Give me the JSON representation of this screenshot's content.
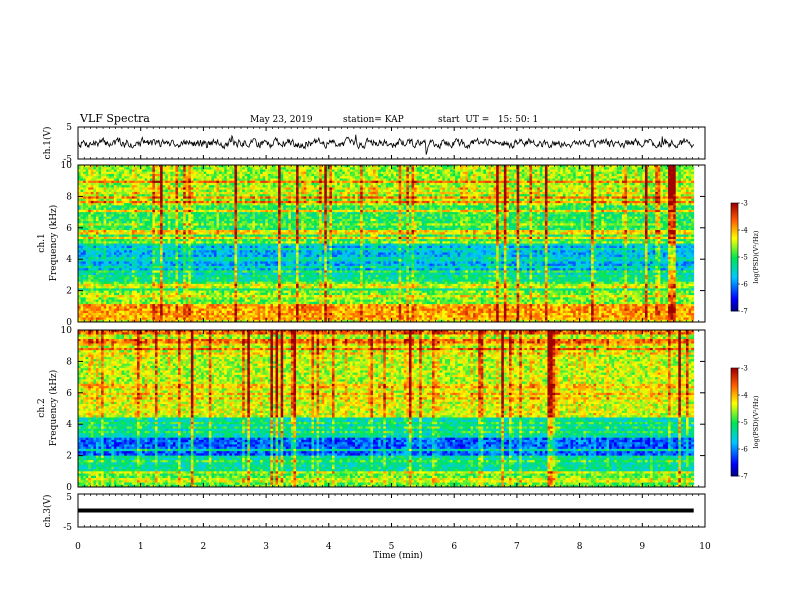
{
  "header": {
    "title": "VLF Spectra",
    "date": "May 23, 2019",
    "station": "station= KAP",
    "start_time": "start  UT =   15: 50: 1"
  },
  "chart_data": [
    {
      "type": "line",
      "name": "ch1-voltage",
      "ylabel": "ch.1(V)",
      "ylim": [
        -5,
        5
      ],
      "yticks": [
        "5",
        "-5"
      ],
      "x_range": [
        0,
        9.82
      ],
      "noise": {
        "mean": 0.0,
        "amplitude": 1.4,
        "seed": 7
      }
    },
    {
      "type": "heatmap",
      "name": "ch1-spectrogram",
      "ylabel_channel": "ch.1",
      "ylabel": "Frequency (kHz)",
      "ylim": [
        0,
        10
      ],
      "yticks": [
        "0",
        "2",
        "4",
        "6",
        "8",
        "10"
      ],
      "x_range": [
        0,
        9.82
      ],
      "colorbar": {
        "label": "log(PSD)(V²/Hz)",
        "range": [
          -7,
          -3
        ],
        "ticks": [
          "-3",
          "-4",
          "-5",
          "-6",
          "-7"
        ]
      },
      "bands": [
        {
          "f0": 0.0,
          "f1": 0.6,
          "level": -4.3
        },
        {
          "f0": 0.6,
          "f1": 1.2,
          "level": -3.9
        },
        {
          "f0": 1.2,
          "f1": 2.0,
          "level": -4.7
        },
        {
          "f0": 2.0,
          "f1": 3.0,
          "level": -5.2
        },
        {
          "f0": 3.0,
          "f1": 5.0,
          "level": -5.8
        },
        {
          "f0": 5.0,
          "f1": 7.5,
          "level": -5.0
        },
        {
          "f0": 7.5,
          "f1": 10.0,
          "level": -4.6
        }
      ],
      "seed": 11
    },
    {
      "type": "heatmap",
      "name": "ch2-spectrogram",
      "ylabel_channel": "ch.2",
      "ylabel": "Frequency (kHz)",
      "ylim": [
        0,
        10
      ],
      "yticks": [
        "0",
        "2",
        "4",
        "6",
        "8",
        "10"
      ],
      "x_range": [
        0,
        9.82
      ],
      "colorbar": {
        "label": "log(PSD)(V²/Hz)",
        "range": [
          -7,
          -3
        ],
        "ticks": [
          "-3",
          "-4",
          "-5",
          "-6",
          "-7"
        ]
      },
      "bands": [
        {
          "f0": 0.0,
          "f1": 1.0,
          "level": -4.8
        },
        {
          "f0": 1.0,
          "f1": 2.0,
          "level": -5.3
        },
        {
          "f0": 2.0,
          "f1": 3.2,
          "level": -6.2
        },
        {
          "f0": 3.2,
          "f1": 4.5,
          "level": -5.4
        },
        {
          "f0": 4.5,
          "f1": 6.5,
          "level": -4.4
        },
        {
          "f0": 6.5,
          "f1": 10.0,
          "level": -4.5
        }
      ],
      "seed": 23
    },
    {
      "type": "line",
      "name": "ch3-voltage",
      "ylabel": "ch.3(V)",
      "ylim": [
        -5,
        5
      ],
      "yticks": [
        "5",
        "-5"
      ],
      "x_range": [
        0,
        9.82
      ],
      "constant_value": 0.0
    }
  ],
  "xaxis": {
    "label": "Time (min)",
    "range": [
      0,
      10
    ],
    "ticks": [
      "0",
      "1",
      "2",
      "3",
      "4",
      "5",
      "6",
      "7",
      "8",
      "9",
      "10"
    ]
  },
  "colors": {
    "trace": "#000000",
    "frame": "#000000",
    "background": "#ffffff"
  }
}
